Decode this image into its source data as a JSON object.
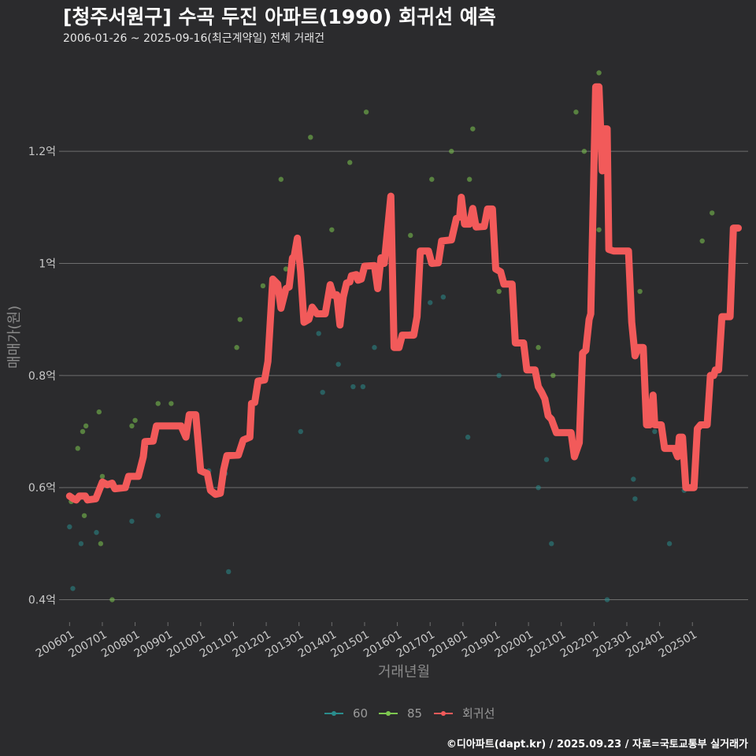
{
  "header": {
    "title": "[청주서원구] 수곡 두진 아파트(1990) 회귀선 예측",
    "subtitle": "2006-01-26 ~ 2025-09-16(최근계약일) 전체 거래건"
  },
  "footer": {
    "caption": "©디아파트(dapt.kr) / 2025.09.23 / 자료=국토교통부 실거래가"
  },
  "colors": {
    "s60": "#2a8c8c",
    "s85": "#7ec850",
    "reg": "#f25a5a",
    "grid": "#6e6e6e"
  },
  "chart_data": {
    "type": "scatter",
    "title": "[청주서원구] 수곡 두진 아파트(1990) 회귀선 예측",
    "xlabel": "거래년월",
    "ylabel": "매매가(원)",
    "xlim": [
      2005.8,
      2026.7
    ],
    "ylim": [
      0.36,
      1.38
    ],
    "x_ticks": [
      {
        "x": 2006.0,
        "label": "200601"
      },
      {
        "x": 2007.0,
        "label": "200701"
      },
      {
        "x": 2008.0,
        "label": "200801"
      },
      {
        "x": 2009.0,
        "label": "200901"
      },
      {
        "x": 2010.0,
        "label": "201001"
      },
      {
        "x": 2011.0,
        "label": "201101"
      },
      {
        "x": 2012.0,
        "label": "201201"
      },
      {
        "x": 2013.0,
        "label": "201301"
      },
      {
        "x": 2014.0,
        "label": "201401"
      },
      {
        "x": 2015.0,
        "label": "201501"
      },
      {
        "x": 2016.0,
        "label": "201601"
      },
      {
        "x": 2017.0,
        "label": "201701"
      },
      {
        "x": 2018.0,
        "label": "201801"
      },
      {
        "x": 2019.0,
        "label": "201901"
      },
      {
        "x": 2020.0,
        "label": "202001"
      },
      {
        "x": 2021.0,
        "label": "202101"
      },
      {
        "x": 2022.0,
        "label": "202201"
      },
      {
        "x": 2023.0,
        "label": "202301"
      },
      {
        "x": 2024.0,
        "label": "202401"
      },
      {
        "x": 2025.0,
        "label": "202501"
      }
    ],
    "y_ticks": [
      {
        "v": 0.4,
        "label": "0.4억"
      },
      {
        "v": 0.6,
        "label": "0.6억"
      },
      {
        "v": 0.8,
        "label": "0.8억"
      },
      {
        "v": 1.0,
        "label": "1억"
      },
      {
        "v": 1.2,
        "label": "1.2억"
      }
    ],
    "legend": [
      {
        "key": "s60",
        "label": "60"
      },
      {
        "key": "s85",
        "label": "85"
      },
      {
        "key": "reg",
        "label": "회귀선"
      }
    ],
    "series": [
      {
        "name": "60",
        "color_key": "s60",
        "points": [
          [
            2006.0,
            0.53
          ],
          [
            2006.1,
            0.42
          ],
          [
            2006.35,
            0.5
          ],
          [
            2006.82,
            0.52
          ],
          [
            2007.9,
            0.54
          ],
          [
            2008.7,
            0.55
          ],
          [
            2010.25,
            0.63
          ],
          [
            2010.75,
            0.625
          ],
          [
            2010.85,
            0.45
          ],
          [
            2013.05,
            0.7
          ],
          [
            2013.6,
            0.875
          ],
          [
            2013.72,
            0.77
          ],
          [
            2014.2,
            0.82
          ],
          [
            2014.65,
            0.78
          ],
          [
            2014.95,
            0.78
          ],
          [
            2015.3,
            0.85
          ],
          [
            2016.4,
            0.875
          ],
          [
            2017.0,
            0.93
          ],
          [
            2017.4,
            0.94
          ],
          [
            2018.15,
            0.69
          ],
          [
            2019.1,
            0.8
          ],
          [
            2020.3,
            0.6
          ],
          [
            2020.55,
            0.65
          ],
          [
            2020.7,
            0.5
          ],
          [
            2022.4,
            0.4
          ],
          [
            2023.2,
            0.615
          ],
          [
            2023.25,
            0.58
          ],
          [
            2023.85,
            0.7
          ],
          [
            2024.3,
            0.5
          ],
          [
            2024.75,
            0.595
          ]
        ]
      },
      {
        "name": "85",
        "color_key": "s85",
        "points": [
          [
            2006.05,
            0.575
          ],
          [
            2006.25,
            0.67
          ],
          [
            2006.4,
            0.7
          ],
          [
            2006.5,
            0.71
          ],
          [
            2006.45,
            0.55
          ],
          [
            2006.9,
            0.735
          ],
          [
            2006.95,
            0.5
          ],
          [
            2007.0,
            0.62
          ],
          [
            2007.3,
            0.4
          ],
          [
            2007.9,
            0.71
          ],
          [
            2008.0,
            0.72
          ],
          [
            2008.7,
            0.75
          ],
          [
            2009.1,
            0.75
          ],
          [
            2009.6,
            0.7
          ],
          [
            2011.1,
            0.85
          ],
          [
            2011.2,
            0.9
          ],
          [
            2011.9,
            0.96
          ],
          [
            2012.3,
            0.95
          ],
          [
            2012.45,
            1.15
          ],
          [
            2012.6,
            0.99
          ],
          [
            2013.35,
            1.225
          ],
          [
            2014.0,
            1.06
          ],
          [
            2014.55,
            1.18
          ],
          [
            2015.05,
            1.27
          ],
          [
            2016.4,
            1.05
          ],
          [
            2017.05,
            1.15
          ],
          [
            2017.65,
            1.2
          ],
          [
            2018.2,
            1.15
          ],
          [
            2018.3,
            1.24
          ],
          [
            2019.1,
            0.95
          ],
          [
            2020.3,
            0.85
          ],
          [
            2020.75,
            0.8
          ],
          [
            2021.45,
            1.27
          ],
          [
            2021.7,
            1.2
          ],
          [
            2022.15,
            1.06
          ],
          [
            2022.15,
            1.34
          ],
          [
            2023.4,
            0.95
          ],
          [
            2025.3,
            1.04
          ],
          [
            2025.6,
            1.09
          ]
        ]
      },
      {
        "name": "회귀선",
        "color_key": "reg",
        "kind": "line",
        "points": [
          [
            2006.0,
            0.585
          ],
          [
            2006.12,
            0.58
          ],
          [
            2006.2,
            0.578
          ],
          [
            2006.3,
            0.585
          ],
          [
            2006.48,
            0.585
          ],
          [
            2006.55,
            0.578
          ],
          [
            2006.8,
            0.58
          ],
          [
            2007.0,
            0.61
          ],
          [
            2007.15,
            0.605
          ],
          [
            2007.3,
            0.608
          ],
          [
            2007.38,
            0.598
          ],
          [
            2007.7,
            0.6
          ],
          [
            2007.8,
            0.62
          ],
          [
            2008.1,
            0.62
          ],
          [
            2008.25,
            0.655
          ],
          [
            2008.3,
            0.682
          ],
          [
            2008.55,
            0.683
          ],
          [
            2008.65,
            0.71
          ],
          [
            2009.4,
            0.71
          ],
          [
            2009.55,
            0.69
          ],
          [
            2009.65,
            0.73
          ],
          [
            2009.85,
            0.73
          ],
          [
            2010.0,
            0.63
          ],
          [
            2010.2,
            0.625
          ],
          [
            2010.3,
            0.595
          ],
          [
            2010.45,
            0.588
          ],
          [
            2010.6,
            0.59
          ],
          [
            2010.7,
            0.632
          ],
          [
            2010.8,
            0.657
          ],
          [
            2011.15,
            0.658
          ],
          [
            2011.3,
            0.685
          ],
          [
            2011.5,
            0.69
          ],
          [
            2011.55,
            0.75
          ],
          [
            2011.65,
            0.752
          ],
          [
            2011.75,
            0.79
          ],
          [
            2011.95,
            0.792
          ],
          [
            2012.05,
            0.825
          ],
          [
            2012.2,
            0.972
          ],
          [
            2012.35,
            0.963
          ],
          [
            2012.45,
            0.92
          ],
          [
            2012.6,
            0.955
          ],
          [
            2012.7,
            0.958
          ],
          [
            2012.8,
            1.01
          ],
          [
            2012.85,
            1.012
          ],
          [
            2012.95,
            1.045
          ],
          [
            2013.05,
            0.985
          ],
          [
            2013.15,
            0.895
          ],
          [
            2013.3,
            0.9
          ],
          [
            2013.4,
            0.922
          ],
          [
            2013.55,
            0.91
          ],
          [
            2013.8,
            0.91
          ],
          [
            2013.95,
            0.962
          ],
          [
            2014.05,
            0.943
          ],
          [
            2014.15,
            0.944
          ],
          [
            2014.25,
            0.89
          ],
          [
            2014.35,
            0.94
          ],
          [
            2014.45,
            0.965
          ],
          [
            2014.55,
            0.967
          ],
          [
            2014.6,
            0.978
          ],
          [
            2014.75,
            0.98
          ],
          [
            2014.8,
            0.97
          ],
          [
            2014.9,
            0.972
          ],
          [
            2015.0,
            0.995
          ],
          [
            2015.3,
            0.996
          ],
          [
            2015.4,
            0.955
          ],
          [
            2015.5,
            1.01
          ],
          [
            2015.6,
            1.0
          ],
          [
            2015.8,
            1.12
          ],
          [
            2015.9,
            0.85
          ],
          [
            2016.05,
            0.85
          ],
          [
            2016.15,
            0.872
          ],
          [
            2016.5,
            0.872
          ],
          [
            2016.6,
            0.905
          ],
          [
            2016.7,
            1.022
          ],
          [
            2016.95,
            1.022
          ],
          [
            2017.05,
            1.0
          ],
          [
            2017.25,
            1.001
          ],
          [
            2017.35,
            1.04
          ],
          [
            2017.65,
            1.042
          ],
          [
            2017.8,
            1.08
          ],
          [
            2017.9,
            1.083
          ],
          [
            2017.95,
            1.118
          ],
          [
            2018.05,
            1.07
          ],
          [
            2018.2,
            1.07
          ],
          [
            2018.3,
            1.098
          ],
          [
            2018.4,
            1.065
          ],
          [
            2018.65,
            1.066
          ],
          [
            2018.75,
            1.097
          ],
          [
            2018.9,
            1.097
          ],
          [
            2019.0,
            0.99
          ],
          [
            2019.15,
            0.985
          ],
          [
            2019.25,
            0.963
          ],
          [
            2019.5,
            0.963
          ],
          [
            2019.6,
            0.858
          ],
          [
            2019.85,
            0.858
          ],
          [
            2019.95,
            0.81
          ],
          [
            2020.2,
            0.81
          ],
          [
            2020.3,
            0.78
          ],
          [
            2020.4,
            0.77
          ],
          [
            2020.5,
            0.758
          ],
          [
            2020.6,
            0.728
          ],
          [
            2020.7,
            0.722
          ],
          [
            2020.85,
            0.698
          ],
          [
            2021.3,
            0.698
          ],
          [
            2021.4,
            0.655
          ],
          [
            2021.55,
            0.68
          ],
          [
            2021.65,
            0.84
          ],
          [
            2021.75,
            0.845
          ],
          [
            2021.85,
            0.9
          ],
          [
            2021.9,
            0.91
          ],
          [
            2022.05,
            1.315
          ],
          [
            2022.15,
            1.315
          ],
          [
            2022.25,
            1.165
          ],
          [
            2022.3,
            1.24
          ],
          [
            2022.4,
            1.24
          ],
          [
            2022.45,
            1.025
          ],
          [
            2022.6,
            1.022
          ],
          [
            2023.05,
            1.022
          ],
          [
            2023.15,
            0.895
          ],
          [
            2023.25,
            0.835
          ],
          [
            2023.35,
            0.85
          ],
          [
            2023.5,
            0.85
          ],
          [
            2023.6,
            0.712
          ],
          [
            2023.7,
            0.712
          ],
          [
            2023.8,
            0.765
          ],
          [
            2023.85,
            0.712
          ],
          [
            2024.05,
            0.712
          ],
          [
            2024.15,
            0.67
          ],
          [
            2024.45,
            0.67
          ],
          [
            2024.55,
            0.655
          ],
          [
            2024.6,
            0.69
          ],
          [
            2024.7,
            0.69
          ],
          [
            2024.8,
            0.6
          ],
          [
            2025.05,
            0.6
          ],
          [
            2025.15,
            0.705
          ],
          [
            2025.25,
            0.712
          ],
          [
            2025.45,
            0.712
          ],
          [
            2025.55,
            0.8
          ],
          [
            2025.65,
            0.8
          ],
          [
            2025.7,
            0.81
          ],
          [
            2025.8,
            0.81
          ],
          [
            2025.9,
            0.905
          ],
          [
            2026.15,
            0.905
          ],
          [
            2026.25,
            1.063
          ],
          [
            2026.4,
            1.063
          ]
        ]
      }
    ]
  }
}
